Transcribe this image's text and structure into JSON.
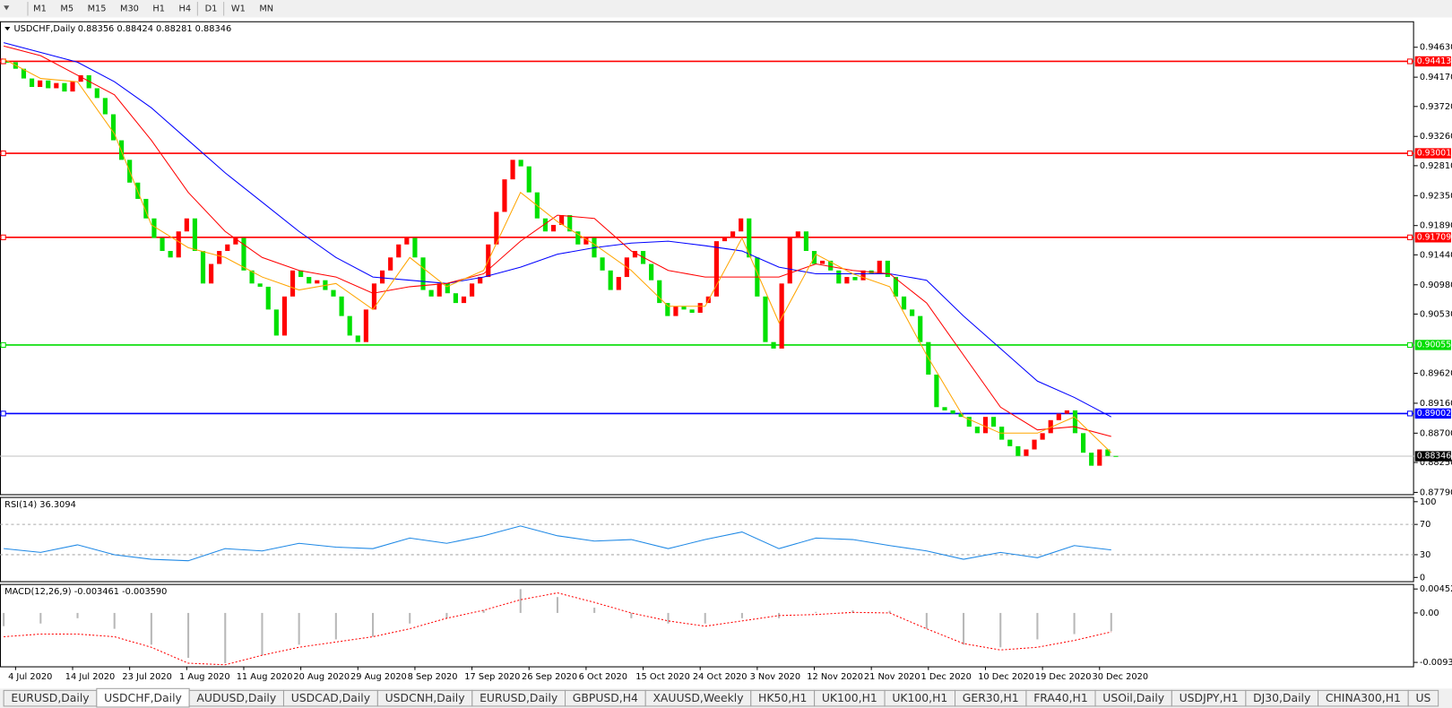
{
  "toolbar": {
    "timeframes": [
      "M1",
      "M5",
      "M15",
      "M30",
      "H1",
      "H4",
      "D1",
      "W1",
      "MN"
    ]
  },
  "chart_data": [
    {
      "type": "candlestick",
      "title": "USDCHF,Daily",
      "subtitle": "0.88356 0.88424 0.88281 0.88346",
      "up_color": "#ff0000",
      "down_color": "#00e000",
      "categories": [
        null,
        "4 Jul 2020",
        null,
        null,
        null,
        null,
        null,
        null,
        "14 Jul 2020",
        null,
        null,
        null,
        null,
        null,
        null,
        "23 Jul 2020",
        null,
        null,
        null,
        null,
        null,
        null,
        "1 Aug 2020",
        null,
        null,
        null,
        null,
        null,
        null,
        "11 Aug 2020",
        null,
        null,
        null,
        null,
        null,
        null,
        "20 Aug 2020",
        null,
        null,
        null,
        null,
        null,
        null,
        "29 Aug 2020",
        null,
        null,
        null,
        null,
        null,
        null,
        "8 Sep 2020",
        null,
        null,
        null,
        null,
        null,
        null,
        "17 Sep 2020",
        null,
        null,
        null,
        null,
        null,
        null,
        "26 Sep 2020",
        null,
        null,
        null,
        null,
        null,
        null,
        "6 Oct 2020",
        null,
        null,
        null,
        null,
        null,
        null,
        "15 Oct 2020",
        null,
        null,
        null,
        null,
        null,
        null,
        "24 Oct 2020",
        null,
        null,
        null,
        null,
        null,
        null,
        "3 Nov 2020",
        null,
        null,
        null,
        null,
        null,
        null,
        "12 Nov 2020",
        null,
        null,
        null,
        null,
        null,
        null,
        "21 Nov 2020",
        null,
        null,
        null,
        null,
        null,
        null,
        "1 Dec 2020",
        null,
        null,
        null,
        null,
        null,
        null,
        "10 Dec 2020",
        null,
        null,
        null,
        null,
        null,
        null,
        "19 Dec 2020",
        null,
        null,
        null,
        null,
        null,
        null,
        "30 Dec 2020",
        null,
        null
      ],
      "values": [
        0.944,
        0.943,
        0.9415,
        0.9402,
        0.9412,
        0.94,
        0.9408,
        0.9395,
        0.941,
        0.942,
        0.94,
        0.9385,
        0.936,
        0.932,
        0.929,
        0.9255,
        0.923,
        0.92,
        0.917,
        0.915,
        0.914,
        0.918,
        0.92,
        0.915,
        0.91,
        0.913,
        0.915,
        0.916,
        0.917,
        0.912,
        0.91,
        0.9095,
        0.906,
        0.902,
        0.908,
        0.912,
        0.911,
        0.91,
        0.9105,
        0.909,
        0.908,
        0.905,
        0.902,
        0.901,
        0.906,
        0.91,
        0.912,
        0.914,
        0.916,
        0.917,
        0.914,
        0.909,
        0.908,
        0.91,
        0.9085,
        0.907,
        0.908,
        0.91,
        0.911,
        0.916,
        0.921,
        0.926,
        0.929,
        0.928,
        0.924,
        0.92,
        0.918,
        0.919,
        0.9205,
        0.918,
        0.916,
        0.917,
        0.914,
        0.912,
        0.909,
        0.911,
        0.914,
        0.915,
        0.913,
        0.9105,
        0.907,
        0.905,
        0.9065,
        0.906,
        0.9055,
        0.907,
        0.908,
        0.9165,
        0.917,
        0.918,
        0.92,
        0.914,
        0.908,
        0.901,
        0.9,
        0.91,
        0.917,
        0.918,
        0.915,
        0.913,
        0.9135,
        0.912,
        0.91,
        0.911,
        0.9105,
        0.912,
        0.9115,
        0.9135,
        0.911,
        0.908,
        0.906,
        0.905,
        0.901,
        0.896,
        0.891,
        0.8905,
        0.89,
        0.8895,
        0.888,
        0.887,
        0.8895,
        0.888,
        0.886,
        0.885,
        0.8835,
        0.8845,
        0.886,
        0.887,
        0.889,
        0.89,
        0.8905,
        0.887,
        0.884,
        0.882,
        0.8845,
        0.8835,
        0.88346
      ],
      "moving_averages": [
        {
          "color": "#0000ff",
          "values": [
            0.947,
            0.9455,
            0.944,
            0.941,
            0.937,
            0.932,
            0.927,
            0.9225,
            0.918,
            0.914,
            0.911,
            0.9105,
            0.91,
            0.911,
            0.9125,
            0.9145,
            0.9155,
            0.9162,
            0.9165,
            0.9158,
            0.915,
            0.9125,
            0.9115,
            0.9115,
            0.9115,
            0.9105,
            0.905,
            0.9,
            0.895,
            0.8925,
            0.8895
          ]
        },
        {
          "color": "#ff0000",
          "values": [
            0.9465,
            0.945,
            0.942,
            0.939,
            0.932,
            0.924,
            0.918,
            0.914,
            0.912,
            0.911,
            0.9085,
            0.9095,
            0.91,
            0.9115,
            0.9165,
            0.9205,
            0.92,
            0.915,
            0.912,
            0.911,
            0.911,
            0.911,
            0.913,
            0.912,
            0.9115,
            0.907,
            0.899,
            0.891,
            0.8875,
            0.888,
            0.8865
          ]
        },
        {
          "color": "#ffa500",
          "values": [
            0.9445,
            0.9415,
            0.941,
            0.933,
            0.919,
            0.9155,
            0.914,
            0.911,
            0.909,
            0.91,
            0.906,
            0.914,
            0.9095,
            0.912,
            0.924,
            0.9195,
            0.916,
            0.912,
            0.9065,
            0.9065,
            0.917,
            0.904,
            0.9145,
            0.9115,
            0.9095,
            0.899,
            0.8895,
            0.887,
            0.887,
            0.8895,
            0.884
          ]
        }
      ],
      "ylim": [
        0.87762,
        0.95029
      ],
      "yticks": [
        {
          "value": 0.9463,
          "label": "0.94630"
        },
        {
          "value": 0.9417,
          "label": "0.94170"
        },
        {
          "value": 0.9372,
          "label": "0.93720"
        },
        {
          "value": 0.9326,
          "label": "0.93260"
        },
        {
          "value": 0.9281,
          "label": "0.92810"
        },
        {
          "value": 0.9235,
          "label": "0.92350"
        },
        {
          "value": 0.9189,
          "label": "0.91890"
        },
        {
          "value": 0.9144,
          "label": "0.91440"
        },
        {
          "value": 0.9098,
          "label": "0.90980"
        },
        {
          "value": 0.9053,
          "label": "0.90530"
        },
        {
          "value": 0.8962,
          "label": "0.89620"
        },
        {
          "value": 0.8916,
          "label": "0.89160"
        },
        {
          "value": 0.887,
          "label": "0.88700"
        },
        {
          "value": 0.8825,
          "label": "0.88250"
        },
        {
          "value": 0.8779,
          "label": "0.87790"
        }
      ],
      "hlines": [
        {
          "value": 0.94413,
          "color": "#ff0000"
        },
        {
          "value": 0.93001,
          "color": "#ff0000"
        },
        {
          "value": 0.91709,
          "color": "#ff0000"
        },
        {
          "value": 0.90055,
          "color": "#00dd00"
        },
        {
          "value": 0.89002,
          "color": "#0000ff"
        }
      ],
      "price_line": {
        "value": 0.88346,
        "line_color": "#c0c0c0",
        "label_color": "#000000"
      }
    },
    {
      "type": "line",
      "title": "RSI(14) 36.3094",
      "color": "#1e88e5",
      "values": [
        38,
        33,
        43,
        30,
        24,
        22,
        38,
        35,
        45,
        40,
        38,
        52,
        45,
        55,
        68,
        55,
        48,
        50,
        38,
        50,
        60,
        38,
        52,
        50,
        42,
        35,
        24,
        33,
        26,
        42,
        36.3094
      ],
      "ylim": [
        -5,
        105
      ],
      "yticks": [
        100,
        70,
        30,
        0
      ],
      "levels": [
        70,
        30
      ]
    },
    {
      "type": "macd",
      "title": "MACD(12,26,9) -0.003461 -0.003590",
      "hist_color": "#b8b8b8",
      "signal_color": "#ff0000",
      "values": [
        -0.0025,
        -0.002,
        -0.001,
        -0.003,
        -0.006,
        -0.0085,
        -0.0095,
        -0.008,
        -0.006,
        -0.005,
        -0.0045,
        -0.002,
        -0.001,
        0.0005,
        0.0045,
        0.003,
        0.001,
        -0.001,
        -0.002,
        -0.002,
        -0.001,
        -0.001,
        0.0002,
        0.0005,
        0.0004,
        -0.003,
        -0.006,
        -0.0065,
        -0.005,
        -0.004,
        -0.003461
      ],
      "signal": [
        -0.0045,
        -0.004,
        -0.004,
        -0.0045,
        -0.0065,
        -0.0095,
        -0.0098,
        -0.008,
        -0.0065,
        -0.0055,
        -0.0045,
        -0.003,
        -0.001,
        0.0005,
        0.0025,
        0.0038,
        0.002,
        0.0,
        -0.0015,
        -0.0025,
        -0.0015,
        -0.0005,
        -0.0003,
        0.0001,
        0.0,
        -0.003,
        -0.0058,
        -0.007,
        -0.0065,
        -0.0052,
        -0.00359
      ],
      "ylim": [
        -0.0101,
        0.0053
      ],
      "yticks": [
        0.004527,
        {
          "value": 0,
          "label": "0.00"
        },
        -0.009348
      ]
    }
  ],
  "tabs": {
    "items": [
      "EURUSD,Daily",
      "USDCHF,Daily",
      "AUDUSD,Daily",
      "USDCAD,Daily",
      "USDCNH,Daily",
      "EURUSD,Daily",
      "GBPUSD,H4",
      "XAUUSD,Weekly",
      "HK50,H1",
      "UK100,H1",
      "UK100,H1",
      "GER30,H1",
      "FRA40,H1",
      "USOil,Daily",
      "USDJPY,H1",
      "DJ30,Daily",
      "CHINA300,H1",
      "US"
    ],
    "active": 1
  }
}
